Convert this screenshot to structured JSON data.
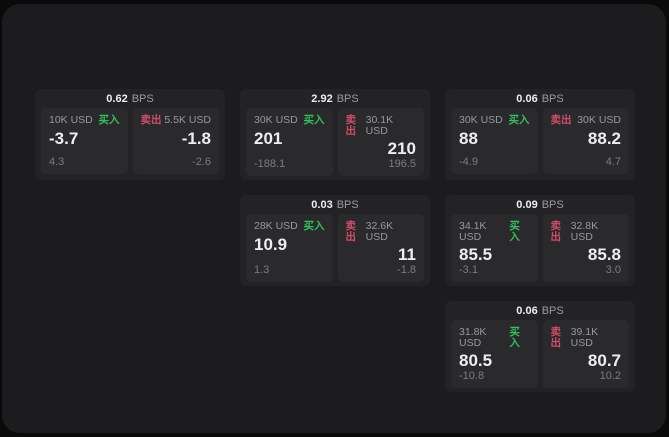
{
  "labels": {
    "bps": "BPS",
    "buy": "买入",
    "sell": "卖出"
  },
  "colors": {
    "page_bg": "#0a0a0a",
    "panel_bg": "#1c1c1e",
    "card_bg": "#232326",
    "tile_bg": "#2a2a2d",
    "buy_green": "#33bf5c",
    "sell_red": "#cf4d68"
  },
  "cards": [
    {
      "bps": "0.62",
      "buy": {
        "size": "10K USD",
        "price": "-3.7",
        "delta": "4.3"
      },
      "sell": {
        "size": "5.5K USD",
        "price": "-1.8",
        "delta": "-2.6"
      }
    },
    {
      "bps": "2.92",
      "buy": {
        "size": "30K USD",
        "price": "201",
        "delta": "-188.1"
      },
      "sell": {
        "size": "30.1K USD",
        "price": "210",
        "delta": "196.5"
      }
    },
    {
      "bps": "0.06",
      "buy": {
        "size": "30K USD",
        "price": "88",
        "delta": "-4.9"
      },
      "sell": {
        "size": "30K USD",
        "price": "88.2",
        "delta": "4.7"
      }
    },
    {
      "bps": "0.03",
      "buy": {
        "size": "28K USD",
        "price": "10.9",
        "delta": "1.3"
      },
      "sell": {
        "size": "32.6K USD",
        "price": "11",
        "delta": "-1.8"
      }
    },
    {
      "bps": "0.09",
      "buy": {
        "size": "34.1K USD",
        "price": "85.5",
        "delta": "-3.1"
      },
      "sell": {
        "size": "32.8K USD",
        "price": "85.8",
        "delta": "3.0"
      }
    },
    {
      "bps": "0.06",
      "buy": {
        "size": "31.8K USD",
        "price": "80.5",
        "delta": "-10.8"
      },
      "sell": {
        "size": "39.1K USD",
        "price": "80.7",
        "delta": "10.2"
      }
    }
  ]
}
